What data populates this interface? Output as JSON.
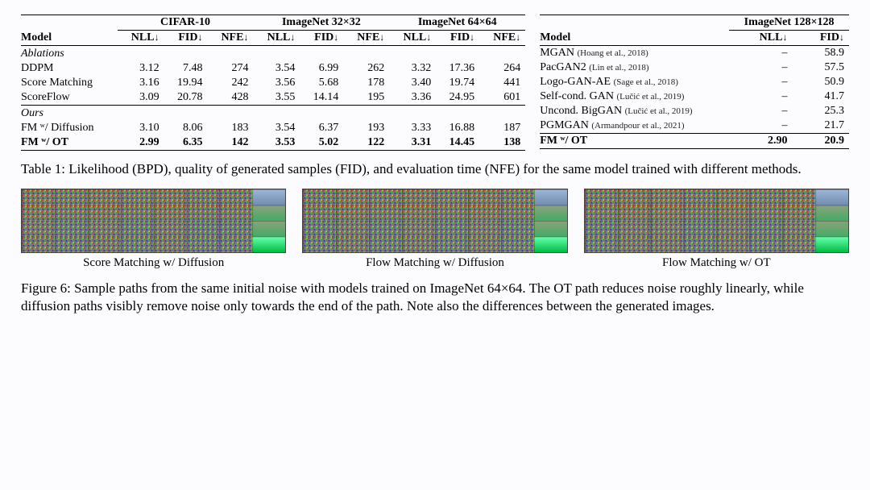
{
  "table_left": {
    "datasets": [
      "CIFAR-10",
      "ImageNet 32×32",
      "ImageNet 64×64"
    ],
    "model_header": "Model",
    "metric_labels": [
      "NLL",
      "FID",
      "NFE"
    ],
    "arrow": "↓",
    "sections": [
      {
        "title": "Ablations",
        "rows": [
          {
            "label": "DDPM",
            "cells": [
              "3.12",
              "7.48",
              "274",
              "3.54",
              "6.99",
              "262",
              "3.32",
              "17.36",
              "264"
            ]
          },
          {
            "label": "Score Matching",
            "cells": [
              "3.16",
              "19.94",
              "242",
              "3.56",
              "5.68",
              "178",
              "3.40",
              "19.74",
              "441"
            ]
          },
          {
            "label": "ScoreFlow",
            "cells": [
              "3.09",
              "20.78",
              "428",
              "3.55",
              "14.14",
              "195",
              "3.36",
              "24.95",
              "601"
            ]
          }
        ]
      },
      {
        "title": "Ours",
        "rows": [
          {
            "label": "FM ʷ/ Diffusion",
            "cells": [
              "3.10",
              "8.06",
              "183",
              "3.54",
              "6.37",
              "193",
              "3.33",
              "16.88",
              "187"
            ]
          },
          {
            "label": "FM ʷ/ OT",
            "bold": true,
            "cells": [
              "2.99",
              "6.35",
              "142",
              "3.53",
              "5.02",
              "122",
              "3.31",
              "14.45",
              "138"
            ]
          }
        ]
      }
    ]
  },
  "table_right": {
    "dataset": "ImageNet 128×128",
    "model_header": "Model",
    "metric_labels": [
      "NLL",
      "FID"
    ],
    "arrow": "↓",
    "rows": [
      {
        "label": "MGAN",
        "cit": "(Hoang et al., 2018)",
        "cells": [
          "–",
          "58.9"
        ]
      },
      {
        "label": "PacGAN2",
        "cit": "(Lin et al., 2018)",
        "cells": [
          "–",
          "57.5"
        ]
      },
      {
        "label": "Logo-GAN-AE",
        "cit": "(Sage et al., 2018)",
        "cells": [
          "–",
          "50.9"
        ]
      },
      {
        "label": "Self-cond. GAN",
        "cit": "(Lučić et al., 2019)",
        "cells": [
          "–",
          "41.7"
        ]
      },
      {
        "label": "Uncond. BigGAN",
        "cit": "(Lučić et al., 2019)",
        "cells": [
          "–",
          "25.3"
        ]
      },
      {
        "label": "PGMGAN",
        "cit": "(Armandpour et al., 2021)",
        "cells": [
          "–",
          "21.7"
        ]
      }
    ],
    "ours": {
      "label": "FM ʷ/ OT",
      "cells": [
        "2.90",
        "20.9"
      ]
    }
  },
  "table_caption": "Table 1: Likelihood (BPD), quality of generated samples (FID), and evaluation time (NFE) for the same model trained with different methods.",
  "figure": {
    "labels": [
      "Score Matching w/ Diffusion",
      "Flow Matching w/ Diffusion",
      "Flow Matching w/ OT"
    ],
    "caption": "Figure 6: Sample paths from the same initial noise with models trained on ImageNet 64×64. The OT path reduces noise roughly linearly, while diffusion paths visibly remove noise only towards the end of the path. Note also the differences between the generated images."
  }
}
